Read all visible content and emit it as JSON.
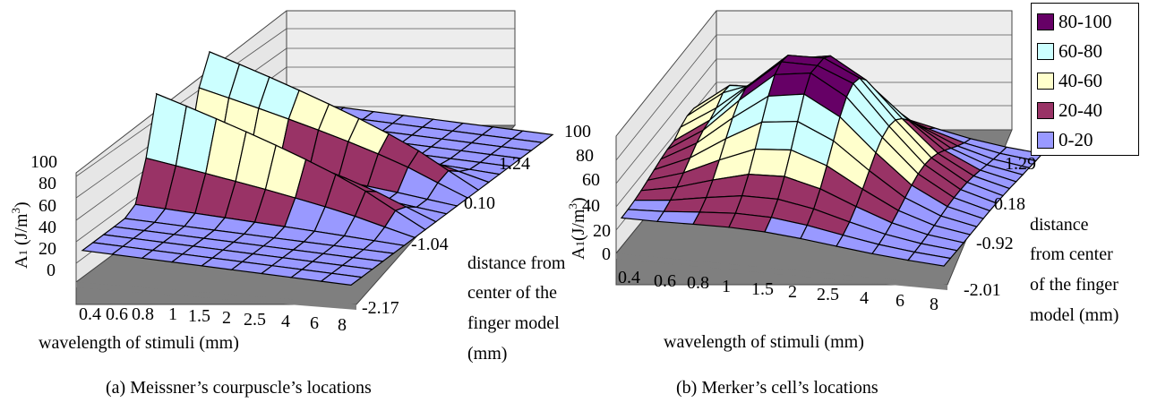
{
  "colors": {
    "band_0_20": "#9999ff",
    "band_20_40": "#993366",
    "band_40_60": "#ffffcc",
    "band_60_80": "#ccffff",
    "band_80_100": "#660066",
    "wall": "#e6e6e6",
    "floor": "#808080"
  },
  "legend": [
    {
      "label": "80-100",
      "color": "#660066"
    },
    {
      "label": "60-80",
      "color": "#ccffff"
    },
    {
      "label": "40-60",
      "color": "#ffffcc"
    },
    {
      "label": "20-40",
      "color": "#993366"
    },
    {
      "label": "0-20",
      "color": "#9999ff"
    }
  ],
  "chart_data": [
    {
      "type": "surface",
      "caption": "(a) Meissner’s courpuscle’s locations",
      "zlabel": "A1 (J/m3)",
      "xlabel": "wavelength of stimuli (mm)",
      "ylabel_lines": [
        "distance from",
        "center of the",
        "finger model",
        "(mm)"
      ],
      "z_ticks": [
        "0",
        "20",
        "40",
        "60",
        "80",
        "100"
      ],
      "zlim": [
        0,
        100
      ],
      "x_ticks": [
        "0.4",
        "0.6",
        "0.8",
        "1",
        "1.5",
        "2",
        "2.5",
        "4",
        "6",
        "8"
      ],
      "y_ticks": [
        "1.24",
        "0.10",
        "-1.04",
        "-2.17"
      ],
      "grid": true
    },
    {
      "type": "surface",
      "caption": "(b) Merker’s cell’s locations",
      "zlabel": "A1(J/m3)",
      "xlabel": "wavelength of stimuli (mm)",
      "ylabel_lines": [
        "distance",
        "from center",
        "of the finger",
        "model (mm)"
      ],
      "z_ticks": [
        "0",
        "20",
        "40",
        "60",
        "80",
        "100"
      ],
      "zlim": [
        0,
        100
      ],
      "x_ticks": [
        "0.4",
        "0.6",
        "0.8",
        "1",
        "1.5",
        "2",
        "2.5",
        "4",
        "6",
        "8"
      ],
      "y_ticks": [
        "1.29",
        "0.18",
        "-0.92",
        "-2.01"
      ],
      "grid": true
    }
  ]
}
